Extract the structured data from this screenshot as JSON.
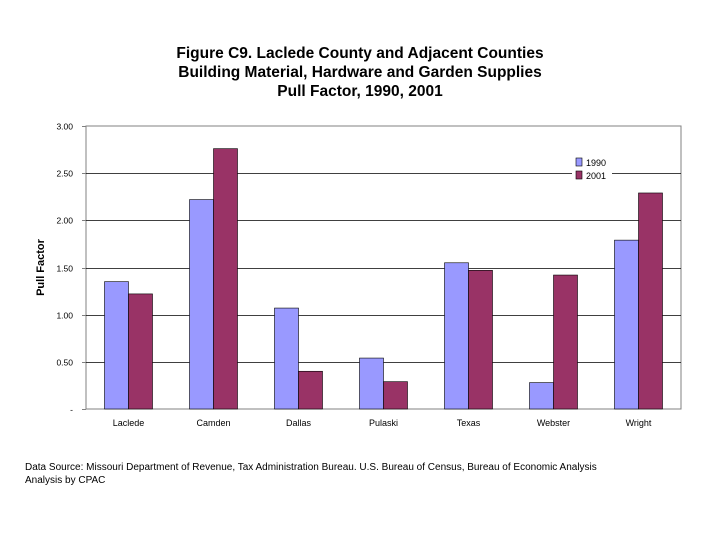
{
  "chart_data": {
    "type": "bar",
    "title_lines": [
      "Figure C9.  Laclede County and Adjacent Counties",
      "Building Material, Hardware and Garden Supplies",
      "Pull Factor, 1990, 2001"
    ],
    "ylabel": "Pull Factor",
    "xlabel": "",
    "categories": [
      "Laclede",
      "Camden",
      "Dallas",
      "Pulaski",
      "Texas",
      "Webster",
      "Wright"
    ],
    "series": [
      {
        "name": "1990",
        "color": "#9999ff",
        "values": [
          1.35,
          2.22,
          1.07,
          0.54,
          1.55,
          0.28,
          1.79
        ]
      },
      {
        "name": "2001",
        "color": "#993366",
        "values": [
          1.22,
          2.76,
          0.4,
          0.29,
          1.47,
          1.42,
          2.29
        ]
      }
    ],
    "ylim": [
      0,
      3
    ],
    "yticks": [
      0,
      0.5,
      1.0,
      1.5,
      2.0,
      2.5,
      3.0
    ],
    "ytick_labels": [
      "-",
      "0.50",
      "1.00",
      "1.50",
      "2.00",
      "2.50",
      "3.00"
    ],
    "grid": true,
    "legend_position": "top-right"
  },
  "source_lines": [
    "Data Source: Missouri Department of Revenue, Tax Administration Bureau. U.S. Bureau of Census, Bureau of Economic Analysis",
    "Analysis by CPAC"
  ]
}
